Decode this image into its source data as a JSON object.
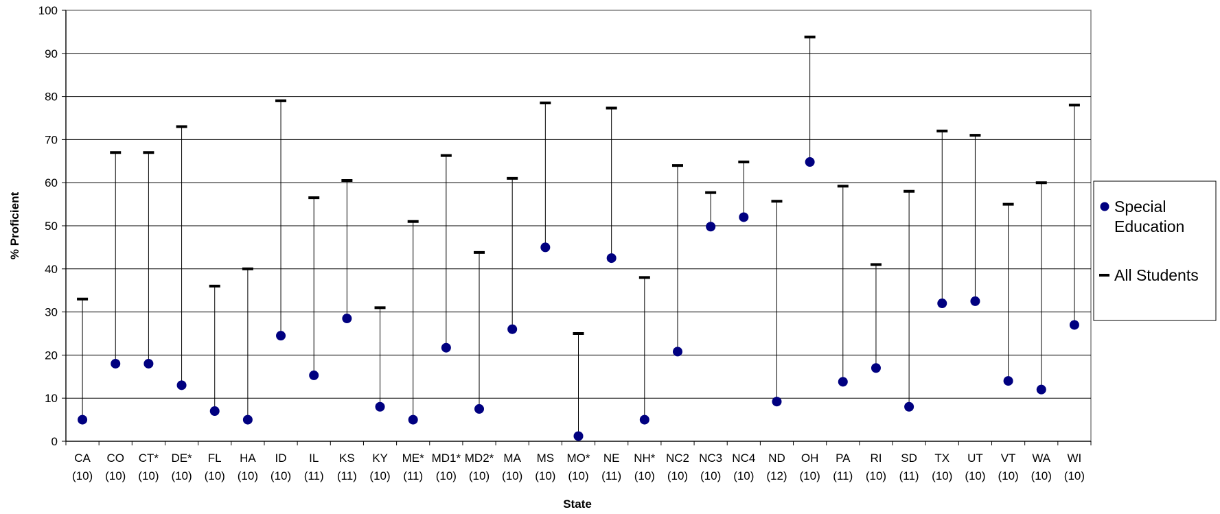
{
  "chart_data": {
    "type": "scatter",
    "xlabel": "State",
    "ylabel": "% Proficient",
    "ylim": [
      0,
      100
    ],
    "yticks": [
      0,
      10,
      20,
      30,
      40,
      50,
      60,
      70,
      80,
      90,
      100
    ],
    "grid": true,
    "legend_position": "right",
    "categories": [
      {
        "state": "CA",
        "grade": "(10)"
      },
      {
        "state": "CO",
        "grade": "(10)"
      },
      {
        "state": "CT*",
        "grade": "(10)"
      },
      {
        "state": "DE*",
        "grade": "(10)"
      },
      {
        "state": "FL",
        "grade": "(10)"
      },
      {
        "state": "HA",
        "grade": "(10)"
      },
      {
        "state": "ID",
        "grade": "(10)"
      },
      {
        "state": "IL",
        "grade": "(11)"
      },
      {
        "state": "KS",
        "grade": "(11)"
      },
      {
        "state": "KY",
        "grade": "(10)"
      },
      {
        "state": "ME*",
        "grade": "(11)"
      },
      {
        "state": "MD1*",
        "grade": "(10)"
      },
      {
        "state": "MD2*",
        "grade": "(10)"
      },
      {
        "state": "MA",
        "grade": "(10)"
      },
      {
        "state": "MS",
        "grade": "(10)"
      },
      {
        "state": "MO*",
        "grade": "(10)"
      },
      {
        "state": "NE",
        "grade": "(11)"
      },
      {
        "state": "NH*",
        "grade": "(10)"
      },
      {
        "state": "NC2",
        "grade": "(10)"
      },
      {
        "state": "NC3",
        "grade": "(10)"
      },
      {
        "state": "NC4",
        "grade": "(10)"
      },
      {
        "state": "ND",
        "grade": "(12)"
      },
      {
        "state": "OH",
        "grade": "(10)"
      },
      {
        "state": "PA",
        "grade": "(11)"
      },
      {
        "state": "RI",
        "grade": "(10)"
      },
      {
        "state": "SD",
        "grade": "(11)"
      },
      {
        "state": "TX",
        "grade": "(10)"
      },
      {
        "state": "UT",
        "grade": "(10)"
      },
      {
        "state": "VT",
        "grade": "(10)"
      },
      {
        "state": "WA",
        "grade": "(10)"
      },
      {
        "state": "WI",
        "grade": "(10)"
      }
    ],
    "series": [
      {
        "name": "Special Education",
        "marker": "circle",
        "color": "#000080",
        "values": [
          5,
          18,
          18,
          13,
          7,
          5,
          24.5,
          15.3,
          28.5,
          8,
          5,
          21.7,
          7.5,
          26,
          45,
          1.2,
          42.5,
          5,
          20.8,
          49.8,
          52,
          9.2,
          64.8,
          13.8,
          17,
          8,
          32,
          32.5,
          14,
          12,
          27
        ]
      },
      {
        "name": "All Students",
        "marker": "dash",
        "color": "#000000",
        "values": [
          33,
          67,
          67,
          73,
          36,
          40,
          79,
          56.5,
          60.5,
          31,
          51,
          66.3,
          43.8,
          61,
          78.5,
          25,
          77.3,
          38,
          64,
          57.7,
          64.8,
          55.7,
          93.8,
          59.2,
          41,
          58,
          72,
          71,
          55,
          60,
          78
        ]
      }
    ]
  }
}
